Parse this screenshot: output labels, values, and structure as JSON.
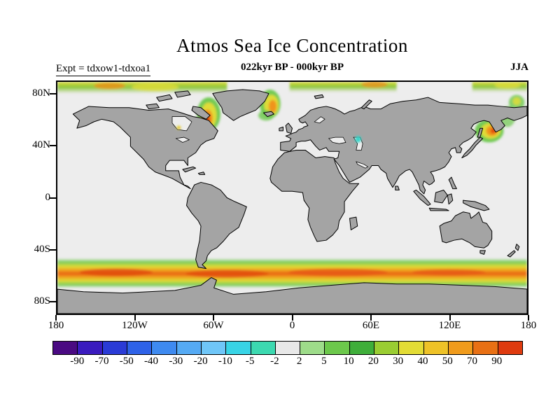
{
  "header": {
    "title": "Atmos Sea Ice Concentration",
    "experiment": "Expt = tdxow1-tdxoa1",
    "period": "022kyr BP - 000kyr BP",
    "season": "JJA"
  },
  "map": {
    "lat_ticks": [
      {
        "value": 80,
        "label": "80N"
      },
      {
        "value": 40,
        "label": "40N"
      },
      {
        "value": 0,
        "label": "0"
      },
      {
        "value": -40,
        "label": "40S"
      },
      {
        "value": -80,
        "label": "80S"
      }
    ],
    "lon_ticks": [
      {
        "value": -180,
        "label": "180"
      },
      {
        "value": -120,
        "label": "120W"
      },
      {
        "value": -60,
        "label": "60W"
      },
      {
        "value": 0,
        "label": "0"
      },
      {
        "value": 60,
        "label": "60E"
      },
      {
        "value": 120,
        "label": "120E"
      },
      {
        "value": 180,
        "label": "180"
      }
    ],
    "land_color": "#A4A4A4",
    "ocean_color": "#EDEDED",
    "coast_color": "#000000"
  },
  "colorbar": {
    "levels": [
      "-90",
      "-70",
      "-50",
      "-40",
      "-30",
      "-20",
      "-10",
      "-5",
      "-2",
      "2",
      "5",
      "10",
      "20",
      "30",
      "40",
      "50",
      "70",
      "90"
    ],
    "colors": [
      "#4A0A82",
      "#3A1BBE",
      "#2A3BD6",
      "#2E62E8",
      "#3E8AF0",
      "#55AAF4",
      "#6FC6F8",
      "#38D4E6",
      "#3CD9B0",
      "#E8E8E8",
      "#9EDC8A",
      "#6CC84B",
      "#3FAE3A",
      "#9ACD32",
      "#E3DC35",
      "#EEC227",
      "#F09B1C",
      "#E87014",
      "#DF3B0F"
    ]
  },
  "chart_data": {
    "type": "heatmap",
    "title": "Atmos Sea Ice Concentration",
    "subtitle": "022kyr BP - 000kyr BP",
    "experiment": "tdxow1-tdxoa1",
    "season": "JJA",
    "projection": "equirectangular",
    "lon_range": [
      -180,
      180
    ],
    "lat_range": [
      -90,
      90
    ],
    "levels": [
      -90,
      -70,
      -50,
      -40,
      -30,
      -20,
      -10,
      -5,
      -2,
      2,
      5,
      10,
      20,
      30,
      40,
      50,
      70,
      90
    ],
    "palette": [
      "#4A0A82",
      "#3A1BBE",
      "#2A3BD6",
      "#2E62E8",
      "#3E8AF0",
      "#55AAF4",
      "#6FC6F8",
      "#38D4E6",
      "#3CD9B0",
      "#E8E8E8",
      "#9EDC8A",
      "#6CC84B",
      "#3FAE3A",
      "#9ACD32",
      "#E3DC35",
      "#EEC227",
      "#F09B1C",
      "#E87014",
      "#DF3B0F"
    ],
    "regions": [
      {
        "name": "southern-ocean-circumpolar-band",
        "lon": [
          -180,
          180
        ],
        "lat": [
          -68,
          -50
        ],
        "value_range": [
          10,
          90
        ],
        "description": "strong positive anomaly band encircling Antarctica; yellow-orange core with red segments, green fringes"
      },
      {
        "name": "baffin-bay-labrador-sea",
        "lon": [
          -75,
          -50
        ],
        "lat": [
          52,
          80
        ],
        "value_range": [
          5,
          70
        ],
        "description": "green/yellow plume with orange-red core"
      },
      {
        "name": "east-greenland-greenland-sea",
        "lon": [
          -32,
          -5
        ],
        "lat": [
          60,
          84
        ],
        "value_range": [
          5,
          60
        ],
        "description": "green/yellow band with orange core along east Greenland"
      },
      {
        "name": "arctic-top-band-american-side",
        "lon": [
          -180,
          -50
        ],
        "lat": [
          81,
          90
        ],
        "value_range": [
          2,
          50
        ],
        "description": "green band with yellow/orange patches along northern map edge"
      },
      {
        "name": "barents-kara-top-band",
        "lon": [
          -2,
          80
        ],
        "lat": [
          82,
          90
        ],
        "value_range": [
          2,
          50
        ]
      },
      {
        "name": "chukchi-bering-strait",
        "lon": [
          138,
          180
        ],
        "lat": [
          62,
          90
        ],
        "value_range": [
          2,
          40
        ]
      },
      {
        "name": "sea-of-okhotsk-nw-pacific",
        "lon": [
          140,
          180
        ],
        "lat": [
          45,
          62
        ],
        "value_range": [
          5,
          90
        ],
        "description": "green/yellow/orange plume with red core near Kamchatka"
      },
      {
        "name": "caspian-region",
        "lon": [
          47,
          54
        ],
        "lat": [
          43,
          50
        ],
        "value_range": [
          -10,
          -5
        ],
        "description": "small cyan negative patch"
      },
      {
        "name": "hudson-bay-speck",
        "lon": [
          -92,
          -85
        ],
        "lat": [
          48,
          54
        ],
        "value_range": [
          5,
          30
        ],
        "description": "tiny yellow-orange speck"
      }
    ]
  }
}
